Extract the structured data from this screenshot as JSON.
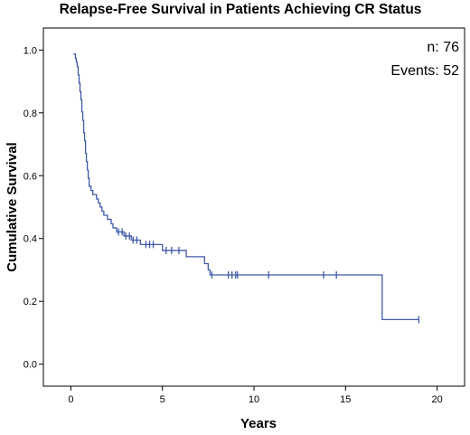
{
  "chart_data": {
    "type": "line",
    "title": "Relapse-Free Survival in Patients Achieving CR Status",
    "xlabel": "Years",
    "ylabel": "Cumulative Survival",
    "xlim": [
      -1.5,
      21.5
    ],
    "ylim": [
      -0.07,
      1.07
    ],
    "x_ticks": [
      0,
      5,
      10,
      15,
      20
    ],
    "y_ticks": [
      0.0,
      0.2,
      0.4,
      0.6,
      0.8,
      1.0
    ],
    "x_tick_labels": [
      "0",
      "5",
      "10",
      "15",
      "20"
    ],
    "y_tick_labels": [
      "0.0",
      "0.2",
      "0.4",
      "0.6",
      "0.8",
      "1.0"
    ],
    "annotations": {
      "n": "n: 76",
      "events": "Events: 52"
    },
    "grid": false,
    "series": [
      {
        "style": "step",
        "color": "#3f5aa8",
        "points": [
          [
            0.15,
            0.987
          ],
          [
            0.25,
            0.974
          ],
          [
            0.3,
            0.961
          ],
          [
            0.35,
            0.947
          ],
          [
            0.4,
            0.921
          ],
          [
            0.45,
            0.895
          ],
          [
            0.5,
            0.868
          ],
          [
            0.55,
            0.842
          ],
          [
            0.6,
            0.803
          ],
          [
            0.65,
            0.776
          ],
          [
            0.7,
            0.737
          ],
          [
            0.75,
            0.711
          ],
          [
            0.8,
            0.671
          ],
          [
            0.85,
            0.645
          ],
          [
            0.9,
            0.618
          ],
          [
            0.95,
            0.592
          ],
          [
            1.0,
            0.566
          ],
          [
            1.1,
            0.553
          ],
          [
            1.2,
            0.54
          ],
          [
            1.4,
            0.526
          ],
          [
            1.5,
            0.513
          ],
          [
            1.6,
            0.5
          ],
          [
            1.7,
            0.487
          ],
          [
            1.8,
            0.474
          ],
          [
            2.0,
            0.461
          ],
          [
            2.2,
            0.447
          ],
          [
            2.3,
            0.434
          ],
          [
            2.5,
            0.421
          ],
          [
            2.9,
            0.408
          ],
          [
            3.3,
            0.395
          ],
          [
            3.8,
            0.381
          ],
          [
            5.0,
            0.362
          ],
          [
            6.3,
            0.342
          ],
          [
            7.3,
            0.32
          ],
          [
            7.5,
            0.3
          ],
          [
            7.6,
            0.284
          ],
          [
            17.0,
            0.142
          ],
          [
            19.0,
            0.142
          ]
        ],
        "censored": [
          [
            2.6,
            0.421
          ],
          [
            2.8,
            0.421
          ],
          [
            3.0,
            0.408
          ],
          [
            3.2,
            0.408
          ],
          [
            3.4,
            0.395
          ],
          [
            3.6,
            0.395
          ],
          [
            4.1,
            0.381
          ],
          [
            4.3,
            0.381
          ],
          [
            4.5,
            0.381
          ],
          [
            5.2,
            0.362
          ],
          [
            5.5,
            0.362
          ],
          [
            5.9,
            0.362
          ],
          [
            7.7,
            0.284
          ],
          [
            8.6,
            0.284
          ],
          [
            8.8,
            0.284
          ],
          [
            9.0,
            0.284
          ],
          [
            9.1,
            0.284
          ],
          [
            10.8,
            0.284
          ],
          [
            13.8,
            0.284
          ],
          [
            14.5,
            0.284
          ],
          [
            19.0,
            0.142
          ]
        ]
      }
    ]
  }
}
